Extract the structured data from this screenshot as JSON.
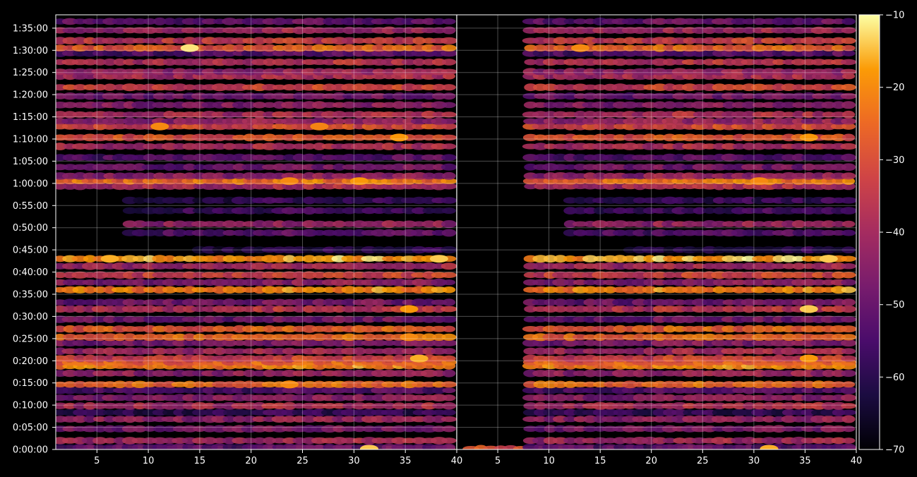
{
  "chart_data": {
    "type": "heatmap",
    "title": "",
    "background_color": "#000000",
    "foreground_color": "#ffffff",
    "grid": true,
    "colormap": "inferno",
    "panels": [
      {
        "name": "",
        "x_range": [
          1,
          40
        ],
        "x_ticks": [
          5,
          10,
          15,
          20,
          25,
          30,
          35,
          40
        ],
        "x_tick_labels": [
          "5",
          "10",
          "15",
          "20",
          "25",
          "30",
          "35",
          "40"
        ]
      },
      {
        "name": "",
        "x_range": [
          1,
          40
        ],
        "x_ticks": [
          5,
          10,
          15,
          20,
          25,
          30,
          35,
          40
        ],
        "x_tick_labels": [
          "5",
          "10",
          "15",
          "20",
          "25",
          "30",
          "35",
          "40"
        ]
      }
    ],
    "y_range_seconds": [
      0,
      5880
    ],
    "y_ticks_seconds": [
      0,
      300,
      600,
      900,
      1200,
      1500,
      1800,
      2100,
      2400,
      2700,
      3000,
      3300,
      3600,
      3900,
      4200,
      4500,
      4800,
      5100,
      5400,
      5700
    ],
    "y_tick_labels": [
      "0:00:00",
      "0:05:00",
      "0:10:00",
      "0:15:00",
      "0:20:00",
      "0:25:00",
      "0:30:00",
      "0:35:00",
      "0:40:00",
      "0:45:00",
      "0:50:00",
      "0:55:00",
      "1:00:00",
      "1:05:00",
      "1:10:00",
      "1:15:00",
      "1:20:00",
      "1:25:00",
      "1:30:00",
      "1:35:00"
    ],
    "colorbar": {
      "range": [
        -70,
        -10
      ],
      "ticks": [
        -70,
        -60,
        -50,
        -40,
        -30,
        -20,
        -10
      ],
      "tick_labels": [
        "−70",
        "−60",
        "−50",
        "−40",
        "−30",
        "−20",
        "−10"
      ]
    },
    "bands": [
      {
        "y": 10,
        "level": -30,
        "right_start": 2
      },
      {
        "y": 30,
        "level": -55
      },
      {
        "y": 120,
        "level": -42
      },
      {
        "y": 280,
        "level": -48
      },
      {
        "y": 410,
        "level": -44
      },
      {
        "y": 500,
        "level": -60
      },
      {
        "y": 590,
        "level": -40
      },
      {
        "y": 700,
        "level": -46
      },
      {
        "y": 800,
        "level": -55
      },
      {
        "y": 880,
        "level": -26
      },
      {
        "y": 1030,
        "level": -44
      },
      {
        "y": 1130,
        "level": -22
      },
      {
        "y": 1180,
        "level": -28
      },
      {
        "y": 1230,
        "level": -34
      },
      {
        "y": 1330,
        "level": -42
      },
      {
        "y": 1440,
        "level": -48
      },
      {
        "y": 1520,
        "level": -26
      },
      {
        "y": 1630,
        "level": -28
      },
      {
        "y": 1760,
        "level": -50
      },
      {
        "y": 1900,
        "level": -38
      },
      {
        "y": 1990,
        "level": -50
      },
      {
        "y": 2160,
        "level": -22
      },
      {
        "y": 2260,
        "level": -46
      },
      {
        "y": 2360,
        "level": -34
      },
      {
        "y": 2480,
        "level": -42
      },
      {
        "y": 2580,
        "level": -18
      },
      {
        "y": 2700,
        "level": -62,
        "left_start": 15,
        "right_start": 18
      },
      {
        "y": 2930,
        "level": -54,
        "left_start": 8,
        "right_start": 12
      },
      {
        "y": 3050,
        "level": -44,
        "left_start": 8,
        "right_start": 12
      },
      {
        "y": 3230,
        "level": -58,
        "left_start": 8,
        "right_start": 12
      },
      {
        "y": 3370,
        "level": -60,
        "left_start": 8,
        "right_start": 12
      },
      {
        "y": 3560,
        "level": -40
      },
      {
        "y": 3630,
        "level": -25
      },
      {
        "y": 3700,
        "level": -44
      },
      {
        "y": 3820,
        "level": -50
      },
      {
        "y": 3950,
        "level": -54
      },
      {
        "y": 4100,
        "level": -40
      },
      {
        "y": 4220,
        "level": -30
      },
      {
        "y": 4370,
        "level": -32
      },
      {
        "y": 4440,
        "level": -44
      },
      {
        "y": 4530,
        "level": -40
      },
      {
        "y": 4660,
        "level": -46
      },
      {
        "y": 4780,
        "level": -50
      },
      {
        "y": 4900,
        "level": -34
      },
      {
        "y": 5050,
        "level": -40
      },
      {
        "y": 5110,
        "level": -44
      },
      {
        "y": 5240,
        "level": -38
      },
      {
        "y": 5360,
        "level": -54
      },
      {
        "y": 5430,
        "level": -28
      },
      {
        "y": 5530,
        "level": -36
      },
      {
        "y": 5670,
        "level": -42
      },
      {
        "y": 5790,
        "level": -52
      }
    ],
    "hotspots": [
      {
        "panel": 0,
        "x": 14,
        "y": 5430,
        "level": -12
      },
      {
        "panel": 0,
        "x": 11,
        "y": 4370,
        "level": -20
      },
      {
        "panel": 0,
        "x": 27,
        "y": 4370,
        "level": -21
      },
      {
        "panel": 0,
        "x": 35,
        "y": 4220,
        "level": -18
      },
      {
        "panel": 0,
        "x": 24,
        "y": 3630,
        "level": -20
      },
      {
        "panel": 0,
        "x": 31,
        "y": 3630,
        "level": -18
      },
      {
        "panel": 0,
        "x": 6,
        "y": 2580,
        "level": -16
      },
      {
        "panel": 0,
        "x": 39,
        "y": 2580,
        "level": -14
      },
      {
        "panel": 0,
        "x": 36,
        "y": 1900,
        "level": -18
      },
      {
        "panel": 0,
        "x": 37,
        "y": 1230,
        "level": -16
      },
      {
        "panel": 0,
        "x": 36,
        "y": 1520,
        "level": -20
      },
      {
        "panel": 0,
        "x": 24,
        "y": 880,
        "level": -20
      },
      {
        "panel": 0,
        "x": 32,
        "y": 10,
        "level": -14
      },
      {
        "panel": 1,
        "x": 13,
        "y": 5430,
        "level": -20
      },
      {
        "panel": 1,
        "x": 36,
        "y": 4220,
        "level": -18
      },
      {
        "panel": 1,
        "x": 38,
        "y": 2580,
        "level": -14
      },
      {
        "panel": 1,
        "x": 36,
        "y": 1900,
        "level": -14
      },
      {
        "panel": 1,
        "x": 36,
        "y": 1230,
        "level": -18
      },
      {
        "panel": 1,
        "x": 31,
        "y": 3630,
        "level": -20
      },
      {
        "panel": 1,
        "x": 32,
        "y": 10,
        "level": -16
      }
    ]
  }
}
